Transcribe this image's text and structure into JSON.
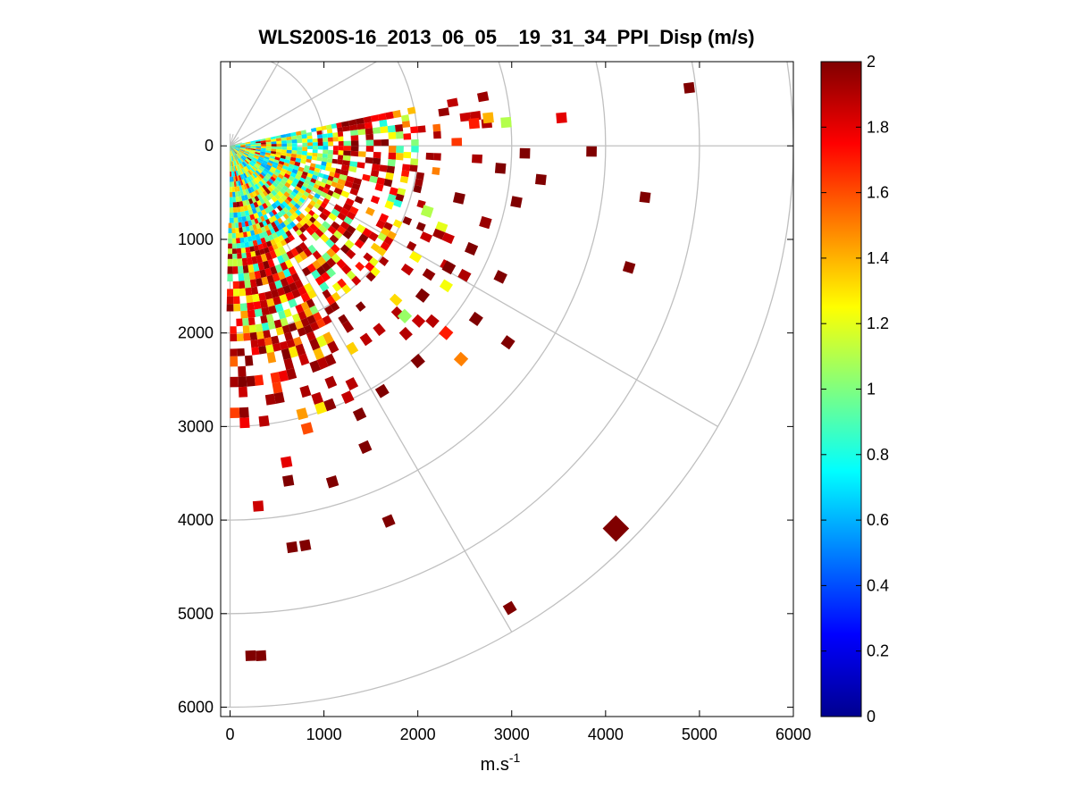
{
  "chart_data": {
    "type": "heatmap",
    "subtype": "polar-ppi",
    "title": "WLS200S-16_2013_06_05__19_31_34_PPI_Disp (m/s)",
    "xlabel": "m.s",
    "xlabel_sup": "-1",
    "ylabel": "",
    "xlim": [
      -100,
      6000
    ],
    "ylim": [
      -900,
      6100
    ],
    "y_reversed": true,
    "x_ticks": [
      "0",
      "1000",
      "2000",
      "3000",
      "4000",
      "5000",
      "6000"
    ],
    "y_ticks": [
      "0",
      "1000",
      "2000",
      "3000",
      "4000",
      "5000",
      "6000"
    ],
    "polar_grid": {
      "origin": [
        0,
        0
      ],
      "ring_radii": [
        1000,
        2000,
        3000,
        4000,
        5000,
        6000
      ],
      "spoke_angles_deg": [
        -60,
        -30,
        0,
        30,
        60,
        90
      ]
    },
    "colorbar": {
      "colormap": "jet",
      "range": [
        0,
        2
      ],
      "ticks": [
        "0",
        "0.2",
        "0.4",
        "0.6",
        "0.8",
        "1",
        "1.2",
        "1.4",
        "1.6",
        "1.8",
        "2"
      ]
    },
    "scan": {
      "angle_range_deg": [
        -12,
        90
      ],
      "dense_max_range_m": 2000,
      "typical_value": 1.05,
      "description": "dense mixed 0.6-1.4 values near origin, increasingly saturated (2 m/s) sparse cells at longer ranges"
    },
    "cells": [
      {
        "x": 4890,
        "y": -620,
        "v": 2.0
      },
      {
        "x": 3530,
        "y": -300,
        "v": 1.8
      },
      {
        "x": 3850,
        "y": 60,
        "v": 2.0
      },
      {
        "x": 4420,
        "y": 550,
        "v": 2.0
      },
      {
        "x": 4250,
        "y": 1300,
        "v": 2.0
      },
      {
        "x": 4110,
        "y": 4090,
        "v": 2.0,
        "big": true
      },
      {
        "x": 2880,
        "y": 1400,
        "v": 2.0
      },
      {
        "x": 2300,
        "y": 2000,
        "v": 1.7
      },
      {
        "x": 2460,
        "y": 2280,
        "v": 1.5
      },
      {
        "x": 2000,
        "y": 2300,
        "v": 2.0
      },
      {
        "x": 2620,
        "y": 1850,
        "v": 2.0
      },
      {
        "x": 2960,
        "y": 2100,
        "v": 2.0
      },
      {
        "x": 1860,
        "y": 1820,
        "v": 1.05
      },
      {
        "x": 2980,
        "y": 4940,
        "v": 2.0
      },
      {
        "x": 1620,
        "y": 2620,
        "v": 2.0
      },
      {
        "x": 1380,
        "y": 2870,
        "v": 2.0
      },
      {
        "x": 1690,
        "y": 4010,
        "v": 2.0
      },
      {
        "x": 1440,
        "y": 3220,
        "v": 2.0
      },
      {
        "x": 1090,
        "y": 3590,
        "v": 2.0
      },
      {
        "x": 800,
        "y": 4270,
        "v": 2.0
      },
      {
        "x": 660,
        "y": 4290,
        "v": 2.0
      },
      {
        "x": 330,
        "y": 5450,
        "v": 2.0
      },
      {
        "x": 220,
        "y": 5450,
        "v": 2.0
      },
      {
        "x": 300,
        "y": 3850,
        "v": 1.85
      },
      {
        "x": 600,
        "y": 3380,
        "v": 1.8
      },
      {
        "x": 620,
        "y": 3580,
        "v": 2.0
      },
      {
        "x": 820,
        "y": 3020,
        "v": 1.6
      },
      {
        "x": 2440,
        "y": 560,
        "v": 2.0
      },
      {
        "x": 2880,
        "y": 240,
        "v": 2.0
      },
      {
        "x": 3140,
        "y": 80,
        "v": 2.0
      },
      {
        "x": 3310,
        "y": 360,
        "v": 2.0
      },
      {
        "x": 3050,
        "y": 600,
        "v": 2.0
      },
      {
        "x": 2720,
        "y": 820,
        "v": 1.95
      },
      {
        "x": 2570,
        "y": 1100,
        "v": 2.0
      },
      {
        "x": 2330,
        "y": 1300,
        "v": 2.0
      },
      {
        "x": 2050,
        "y": 1600,
        "v": 2.0
      },
      {
        "x": 2100,
        "y": 700,
        "v": 1.1
      },
      {
        "x": 2940,
        "y": -250,
        "v": 1.1
      },
      {
        "x": 2750,
        "y": -300,
        "v": 1.4
      },
      {
        "x": 2600,
        "y": -240,
        "v": 1.7
      }
    ]
  }
}
